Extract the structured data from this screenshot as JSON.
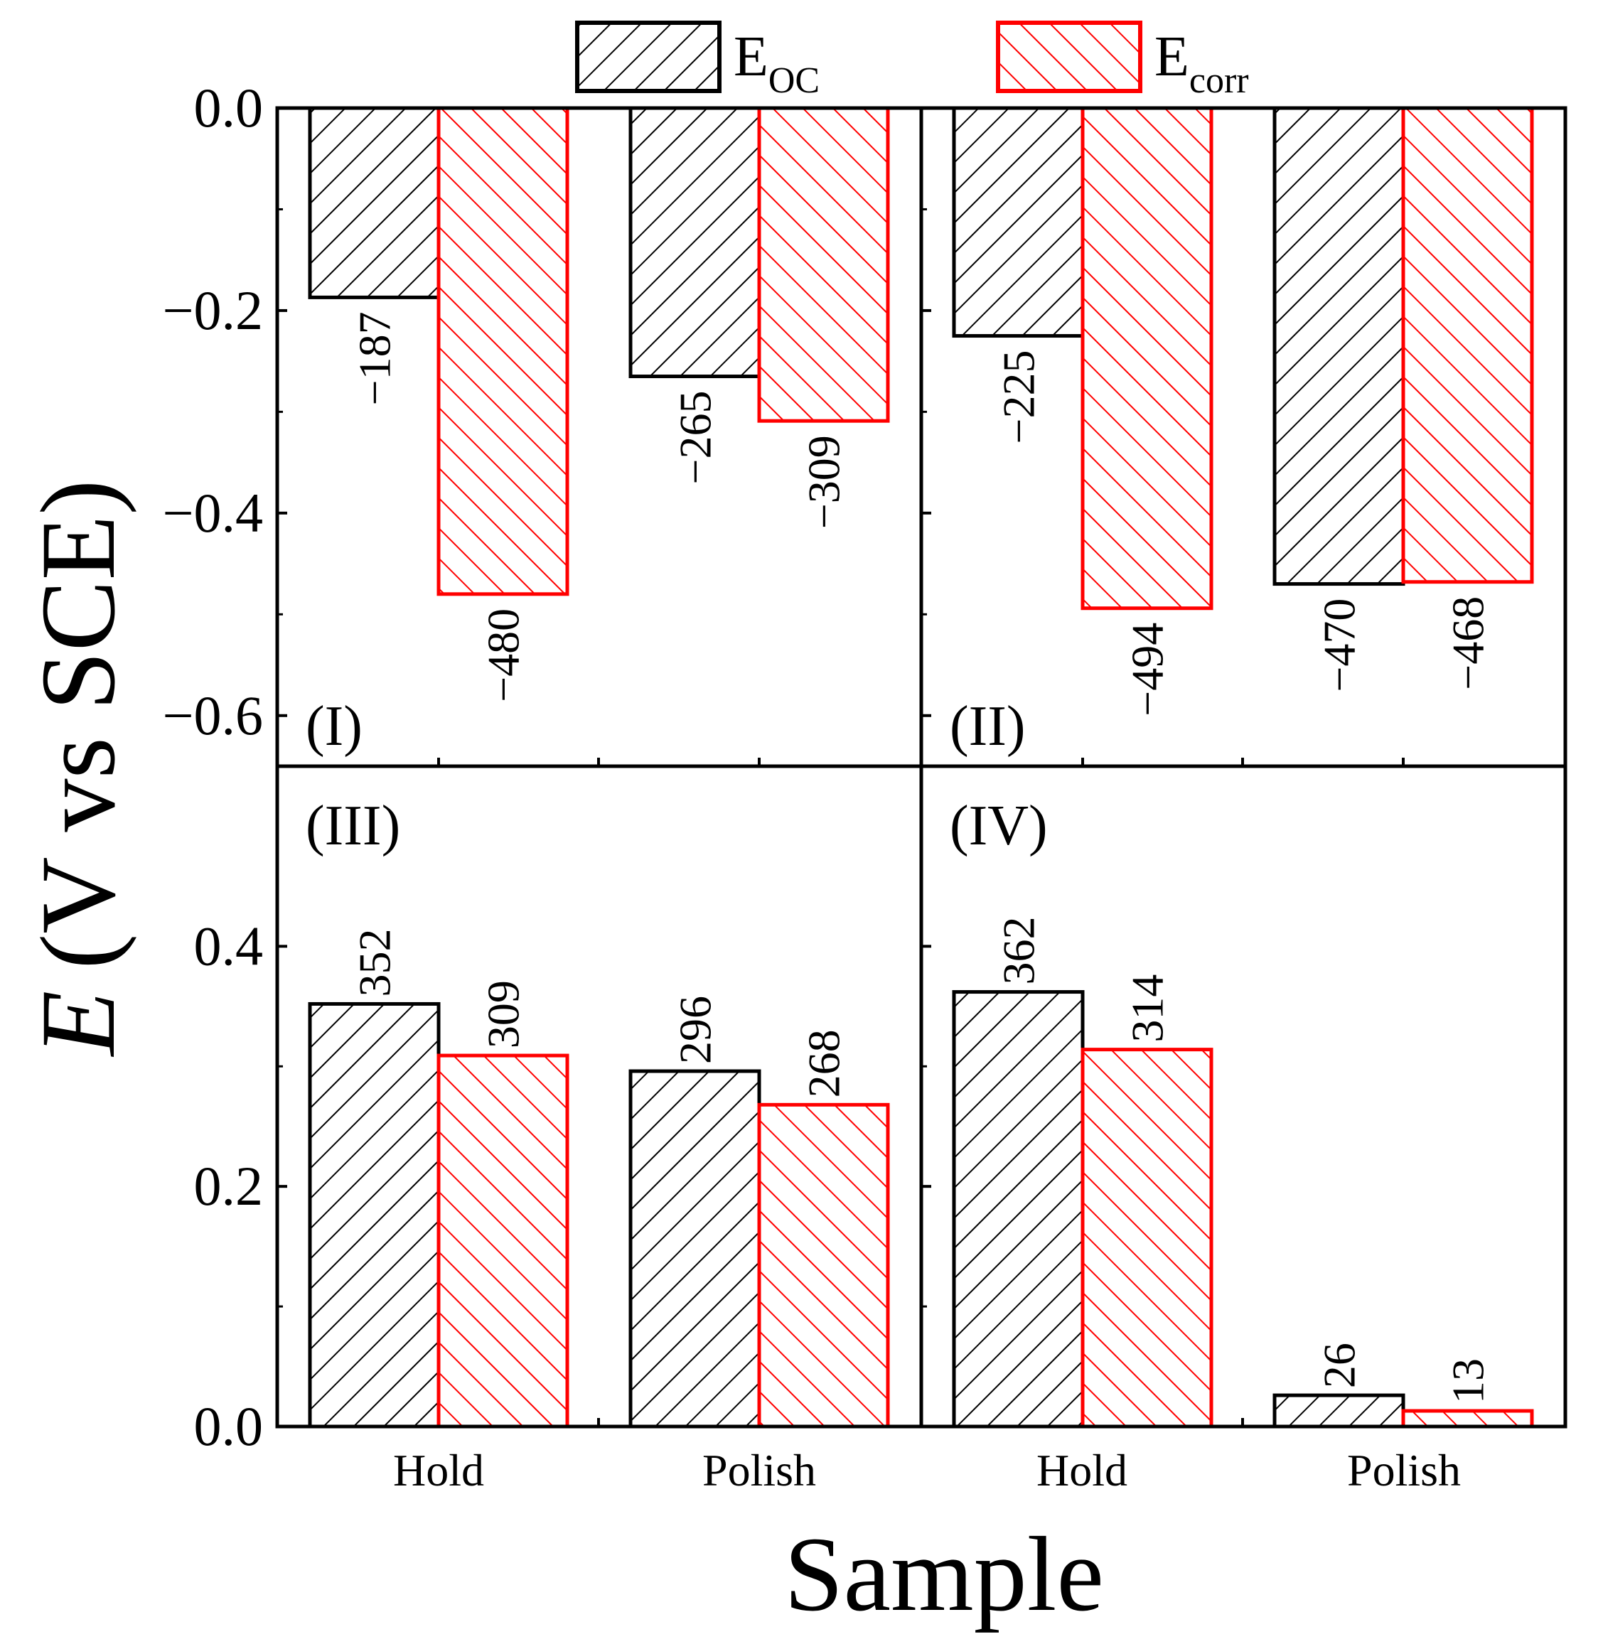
{
  "chart_data": {
    "type": "bar",
    "xlabel": "Sample",
    "ylabel": "E (V vs SCE)",
    "ylabel_italic_part": "E",
    "ylabel_rest": "(V vs SCE)",
    "categories": [
      "Hold",
      "Polish"
    ],
    "legend": [
      {
        "name": "E_OC",
        "base": "E",
        "sub": "OC",
        "color": "#000000",
        "hatch": "forward"
      },
      {
        "name": "E_corr",
        "base": "E",
        "sub": "corr",
        "color": "#ff0000",
        "hatch": "backward"
      }
    ],
    "panels": [
      {
        "label": "(I)",
        "ylim": [
          -0.65,
          0.0
        ],
        "yticks": [
          0.0,
          -0.2,
          -0.4,
          -0.6
        ],
        "ytick_labels": [
          "0.0",
          "−0.2",
          "−0.4",
          "−0.6"
        ],
        "series": [
          {
            "name": "E_OC",
            "values": [
              -0.187,
              -0.265
            ],
            "data_labels": [
              "−187",
              "−265"
            ]
          },
          {
            "name": "E_corr",
            "values": [
              -0.48,
              -0.309
            ],
            "data_labels": [
              "−480",
              "−309"
            ]
          }
        ]
      },
      {
        "label": "(II)",
        "ylim": [
          -0.65,
          0.0
        ],
        "yticks": [
          0.0,
          -0.2,
          -0.4,
          -0.6
        ],
        "ytick_labels": [
          "",
          "",
          "",
          ""
        ],
        "series": [
          {
            "name": "E_OC",
            "values": [
              -0.225,
              -0.47
            ],
            "data_labels": [
              "−225",
              "−470"
            ]
          },
          {
            "name": "E_corr",
            "values": [
              -0.494,
              -0.468
            ],
            "data_labels": [
              "−494",
              "−468"
            ]
          }
        ]
      },
      {
        "label": "(III)",
        "ylim": [
          0.0,
          0.55
        ],
        "yticks": [
          0.0,
          0.2,
          0.4
        ],
        "ytick_labels": [
          "0.0",
          "0.2",
          "0.4"
        ],
        "series": [
          {
            "name": "E_OC",
            "values": [
              0.352,
              0.296
            ],
            "data_labels": [
              "352",
              "296"
            ]
          },
          {
            "name": "E_corr",
            "values": [
              0.309,
              0.268
            ],
            "data_labels": [
              "309",
              "268"
            ]
          }
        ]
      },
      {
        "label": "(IV)",
        "ylim": [
          0.0,
          0.55
        ],
        "yticks": [
          0.0,
          0.2,
          0.4
        ],
        "ytick_labels": [
          "",
          "",
          ""
        ],
        "series": [
          {
            "name": "E_OC",
            "values": [
              0.362,
              0.026
            ],
            "data_labels": [
              "362",
              "26"
            ]
          },
          {
            "name": "E_corr",
            "values": [
              0.314,
              0.013
            ],
            "data_labels": [
              "314",
              "13"
            ]
          }
        ]
      }
    ]
  }
}
